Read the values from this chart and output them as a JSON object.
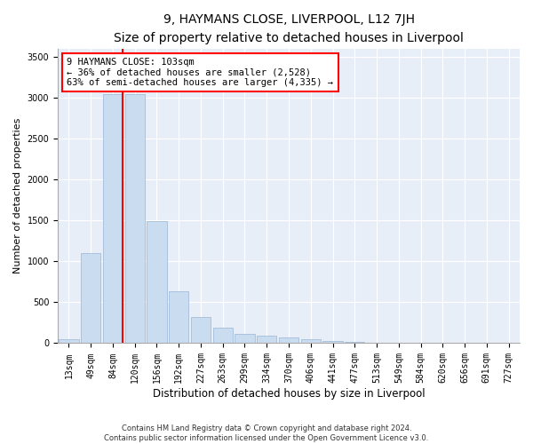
{
  "title1": "9, HAYMANS CLOSE, LIVERPOOL, L12 7JH",
  "title2": "Size of property relative to detached houses in Liverpool",
  "xlabel": "Distribution of detached houses by size in Liverpool",
  "ylabel": "Number of detached properties",
  "categories": [
    "13sqm",
    "49sqm",
    "84sqm",
    "120sqm",
    "156sqm",
    "192sqm",
    "227sqm",
    "263sqm",
    "299sqm",
    "334sqm",
    "370sqm",
    "406sqm",
    "441sqm",
    "477sqm",
    "513sqm",
    "549sqm",
    "584sqm",
    "620sqm",
    "656sqm",
    "691sqm",
    "727sqm"
  ],
  "values": [
    50,
    1100,
    3050,
    3050,
    1490,
    635,
    325,
    185,
    110,
    95,
    70,
    50,
    28,
    14,
    7,
    4,
    2,
    1,
    1,
    0,
    0
  ],
  "bar_color": "#c9dcf0",
  "bar_edge_color": "#9ab5d5",
  "vline_x_index": 2.43,
  "vline_color": "red",
  "annotation_text": "9 HAYMANS CLOSE: 103sqm\n← 36% of detached houses are smaller (2,528)\n63% of semi-detached houses are larger (4,335) →",
  "annotation_box_facecolor": "white",
  "annotation_box_edgecolor": "red",
  "ylim": [
    0,
    3600
  ],
  "yticks": [
    0,
    500,
    1000,
    1500,
    2000,
    2500,
    3000,
    3500
  ],
  "footer1": "Contains HM Land Registry data © Crown copyright and database right 2024.",
  "footer2": "Contains public sector information licensed under the Open Government Licence v3.0.",
  "plot_bg_color": "#e8eef8",
  "grid_color": "white",
  "title1_fontsize": 10,
  "title2_fontsize": 9,
  "tick_fontsize": 7,
  "ylabel_fontsize": 8,
  "xlabel_fontsize": 8.5,
  "annotation_fontsize": 7.5,
  "footer_fontsize": 6
}
